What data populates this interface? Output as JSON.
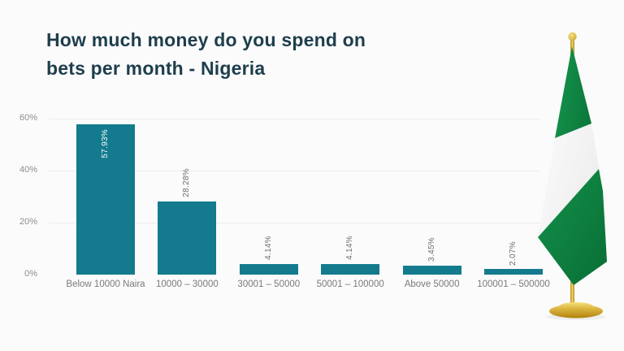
{
  "title": {
    "line1": "How much money do you spend on",
    "line2": "bets per month - Nigeria"
  },
  "chart_data": {
    "type": "bar",
    "title": "How much money do you spend on bets per month - Nigeria",
    "categories": [
      "Below 10000 Naira",
      "10000 – 30000",
      "30001 – 50000",
      "50001 – 100000",
      "Above 50000",
      "100001 – 500000"
    ],
    "values": [
      57.93,
      28.28,
      4.14,
      4.14,
      3.45,
      2.07
    ],
    "value_labels": [
      "57.93%",
      "28.28%",
      "4.14%",
      "4.14%",
      "3.45%",
      "2.07%"
    ],
    "value_label_style": "rotated 90°, first label inside bar in white, others above bars in gray",
    "yticks": [
      {
        "label": "0%",
        "value": 0
      },
      {
        "label": "20%",
        "value": 20
      },
      {
        "label": "40%",
        "value": 40
      },
      {
        "label": "60%",
        "value": 60
      }
    ],
    "xlabel": "",
    "ylabel": "",
    "ylim": [
      0,
      60
    ],
    "grid": "faint horizontal lines at 20/40/60",
    "legend": "none",
    "bar_color": "#137b8d"
  },
  "colors": {
    "background": "#fbfbfb",
    "title_text": "#1e3e4c",
    "bar": "#137b8d",
    "axis_text": "#8d8d8d",
    "category_text": "#7a7a7a",
    "flag_green": "#0f8a46",
    "flag_white": "#f7f7f7",
    "flag_gold": "#d4a82e"
  },
  "decorations": {
    "flag": "draped Nigeria flag on gold stand with ball finial and round gold base"
  }
}
